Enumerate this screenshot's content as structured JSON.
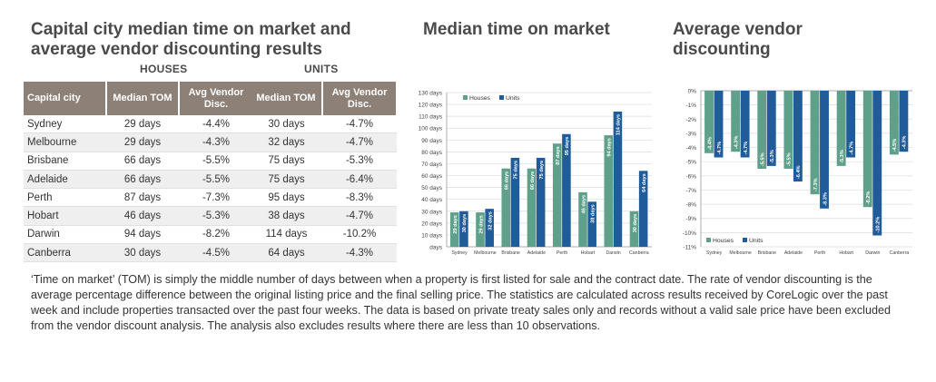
{
  "titles": {
    "main": "Capital city median time on market and average vendor discounting results",
    "tom": "Median time on market",
    "discount": "Average vendor discounting"
  },
  "table": {
    "houses_label": "HOUSES",
    "units_label": "UNITS",
    "headers": {
      "city": "Capital city",
      "tom": "Median TOM",
      "disc": "Avg Vendor Disc."
    },
    "rows": [
      {
        "city": "Sydney",
        "h_tom": "29 days",
        "h_disc": "-4.4%",
        "u_tom": "30 days",
        "u_disc": "-4.7%"
      },
      {
        "city": "Melbourne",
        "h_tom": "29 days",
        "h_disc": "-4.3%",
        "u_tom": "32 days",
        "u_disc": "-4.7%"
      },
      {
        "city": "Brisbane",
        "h_tom": "66 days",
        "h_disc": "-5.5%",
        "u_tom": "75 days",
        "u_disc": "-5.3%"
      },
      {
        "city": "Adelaide",
        "h_tom": "66 days",
        "h_disc": "-5.5%",
        "u_tom": "75 days",
        "u_disc": "-6.4%"
      },
      {
        "city": "Perth",
        "h_tom": "87 days",
        "h_disc": "-7.3%",
        "u_tom": "95 days",
        "u_disc": "-8.3%"
      },
      {
        "city": "Hobart",
        "h_tom": "46 days",
        "h_disc": "-5.3%",
        "u_tom": "38 days",
        "u_disc": "-4.7%"
      },
      {
        "city": "Darwin",
        "h_tom": "94 days",
        "h_disc": "-8.2%",
        "u_tom": "114 days",
        "u_disc": "-10.2%"
      },
      {
        "city": "Canberra",
        "h_tom": "30 days",
        "h_disc": "-4.5%",
        "u_tom": "64 days",
        "u_disc": "-4.3%"
      }
    ]
  },
  "colors": {
    "houses": "#5fa08a",
    "units": "#1f5c99"
  },
  "chart_data": [
    {
      "type": "bar",
      "title": "Median time on market",
      "categories": [
        "Sydney",
        "Melbourne",
        "Brisbane",
        "Adelaide",
        "Perth",
        "Hobart",
        "Darwin",
        "Canberra"
      ],
      "series": [
        {
          "name": "Houses",
          "values": [
            29,
            29,
            66,
            66,
            87,
            46,
            94,
            30
          ],
          "labels": [
            "29 days",
            "29 days",
            "66 days",
            "66 days",
            "87 days",
            "46 days",
            "94 days",
            "30 days"
          ]
        },
        {
          "name": "Units",
          "values": [
            30,
            32,
            75,
            75,
            95,
            38,
            114,
            64
          ],
          "labels": [
            "30 days",
            "32 days",
            "75 days",
            "75 days",
            "95 days",
            "38 days",
            "114 days",
            "64 days"
          ]
        }
      ],
      "ylim": [
        0,
        130
      ],
      "yticks": [
        "days",
        "10 days",
        "20 days",
        "30 days",
        "40 days",
        "50 days",
        "60 days",
        "70 days",
        "80 days",
        "90 days",
        "100 days",
        "110 days",
        "120 days",
        "130 days"
      ],
      "legend": "top-left",
      "grid": true
    },
    {
      "type": "bar",
      "title": "Average vendor discounting",
      "categories": [
        "Sydney",
        "Melbourne",
        "Brisbane",
        "Adelaide",
        "Perth",
        "Hobart",
        "Darwin",
        "Canberra"
      ],
      "series": [
        {
          "name": "Houses",
          "values": [
            -4.4,
            -4.3,
            -5.5,
            -5.5,
            -7.3,
            -5.3,
            -8.2,
            -4.5
          ],
          "labels": [
            "-4.4%",
            "-4.3%",
            "-5.5%",
            "-5.5%",
            "-7.3%",
            "-5.3%",
            "-8.2%",
            "-4.5%"
          ]
        },
        {
          "name": "Units",
          "values": [
            -4.7,
            -4.7,
            -5.3,
            -6.4,
            -8.3,
            -4.7,
            -10.2,
            -4.3
          ],
          "labels": [
            "-4.7%",
            "-4.7%",
            "-5.3%",
            "-6.4%",
            "-8.3%",
            "-4.7%",
            "-10.2%",
            "-4.3%"
          ]
        }
      ],
      "ylim": [
        -11,
        0
      ],
      "yticks": [
        "0%",
        "-1%",
        "-2%",
        "-3%",
        "-4%",
        "-5%",
        "-6%",
        "-7%",
        "-8%",
        "-9%",
        "-10%",
        "-11%"
      ],
      "legend": "bottom-left",
      "grid": true
    }
  ],
  "footnote": "‘Time on market’ (TOM) is simply the middle number of days between when a property is first listed for sale and the contract date.  The rate of vendor discounting is the average percentage difference between the original listing price and the final selling price.  The statistics are calculated across results received by CoreLogic over the past week and include properties transacted over the past four weeks. The data is based on private treaty sales only and records without a valid sale price have been excluded from the vendor discount analysis. The analysis also excludes results where there are less than 10 observations."
}
